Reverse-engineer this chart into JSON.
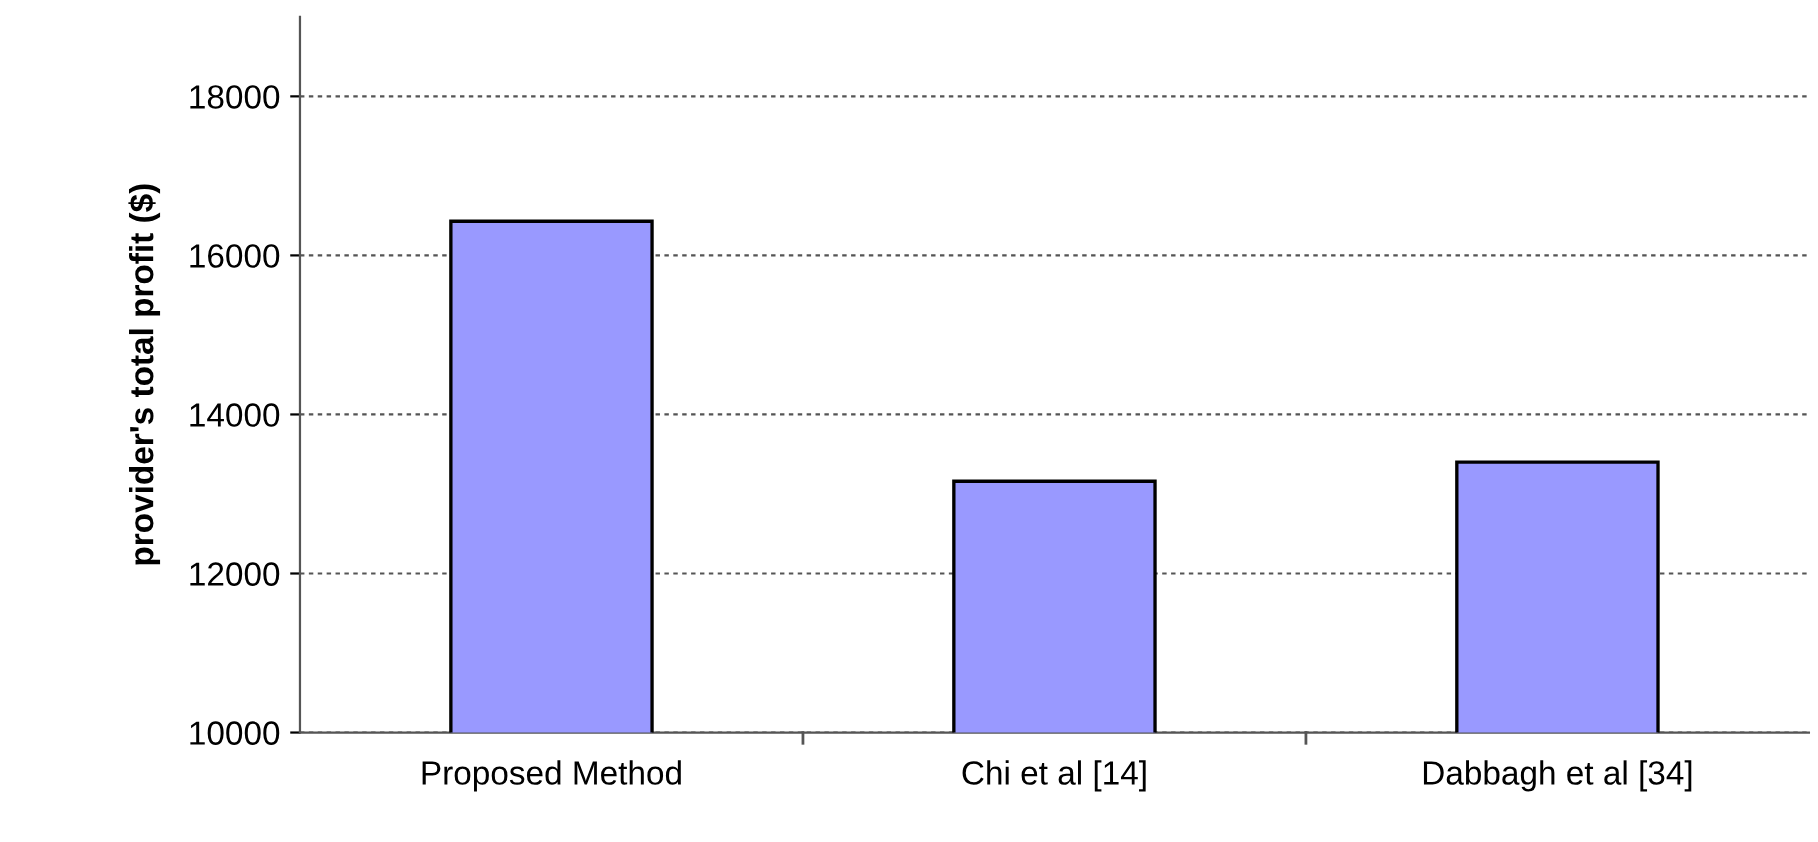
{
  "chart_data": {
    "type": "bar",
    "ylabel": "provider's total profit ($)",
    "categories": [
      "Proposed Method",
      "Chi et al [14]",
      "Dabbagh et al [34]"
    ],
    "values": [
      16430,
      13160,
      13400
    ],
    "color": "#9999ff",
    "ylim": [
      10000,
      19000
    ],
    "yticks": [
      10000,
      12000,
      14000,
      16000,
      18000
    ],
    "grid": "y",
    "legend": false
  }
}
